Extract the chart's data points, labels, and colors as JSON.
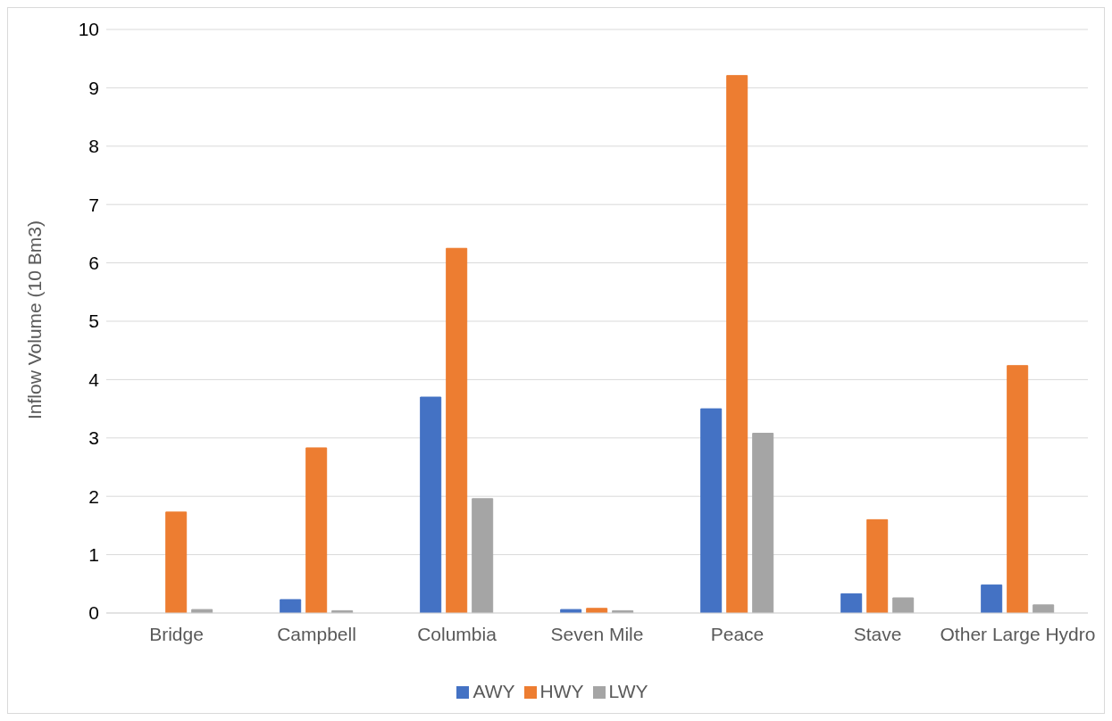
{
  "chart_data": {
    "type": "bar",
    "ylabel": "Inflow Volume (10 Bm3)",
    "categories": [
      "Bridge",
      "Campbell",
      "Columbia",
      "Seven Mile",
      "Peace",
      "Stave",
      "Other Large Hydro"
    ],
    "series": [
      {
        "name": "AWY",
        "color": "#4472c4",
        "values": [
          0,
          0.23,
          3.7,
          0.06,
          3.5,
          0.33,
          0.48
        ]
      },
      {
        "name": "HWY",
        "color": "#ed7d31",
        "values": [
          1.73,
          2.83,
          6.25,
          0.08,
          9.21,
          1.6,
          4.24
        ]
      },
      {
        "name": "LWY",
        "color": "#a5a5a5",
        "values": [
          0.06,
          0.04,
          1.96,
          0.04,
          3.08,
          0.26,
          0.14
        ]
      }
    ],
    "ylim": [
      0,
      10
    ],
    "yticks": [
      0,
      1,
      2,
      3,
      4,
      5,
      6,
      7,
      8,
      9,
      10
    ],
    "grid": "y",
    "legend": "bottom"
  }
}
